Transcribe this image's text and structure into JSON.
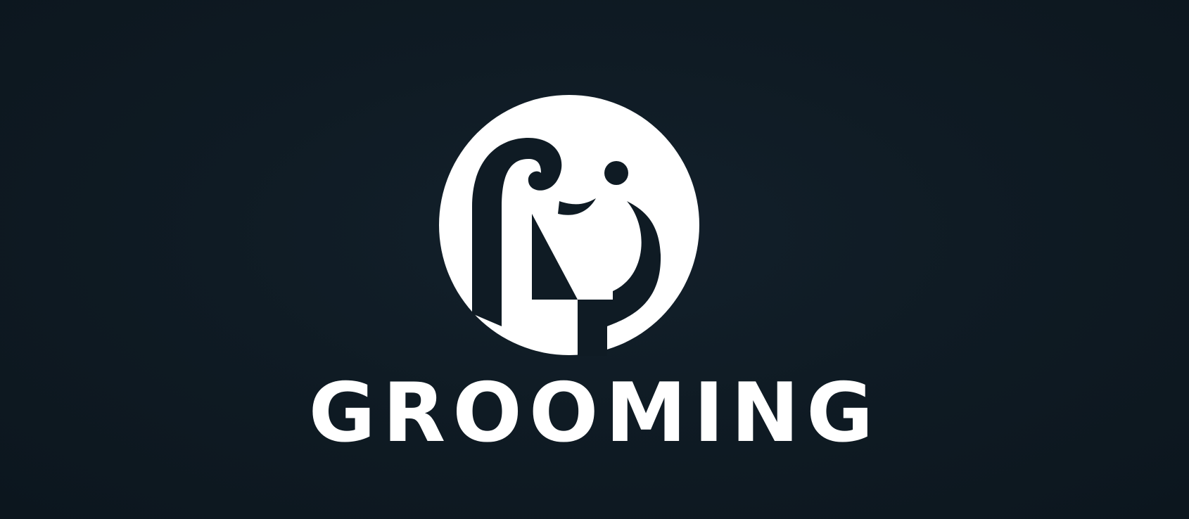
{
  "brand": {
    "name": "GROOMING"
  },
  "logo": {
    "icon": "elephant-circle-icon",
    "foreground_color": "#ffffff",
    "background_color": "#0f1b24"
  }
}
